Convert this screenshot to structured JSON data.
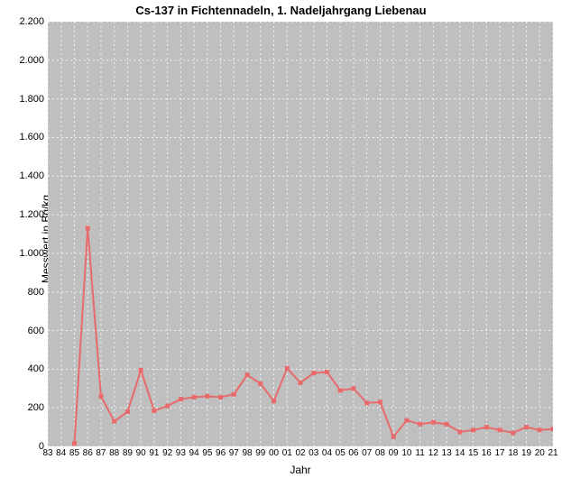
{
  "chart": {
    "type": "line",
    "title": "Cs-137 in Fichtennadeln, 1. Nadeljahrgang Liebenau",
    "title_fontsize": 13,
    "xlabel": "Jahr",
    "ylabel": "Messwert in Bq/kg",
    "label_fontsize": 12,
    "background_color": "#ffffff",
    "plot_background_color": "#bfbfbf",
    "grid_color": "#f2f2f2",
    "grid_dash": "2,3",
    "line_color": "#e86a6a",
    "marker_color": "#e86a6a",
    "marker_size": 5,
    "line_width": 2,
    "xlim": [
      1983,
      2021
    ],
    "ylim": [
      0,
      2200
    ],
    "ytick_step": 200,
    "yticks": [
      0,
      200,
      400,
      600,
      800,
      1000,
      1200,
      1400,
      1600,
      1800,
      2000,
      2200
    ],
    "ytick_labels": [
      "0",
      "200",
      "400",
      "600",
      "800",
      "1.000",
      "1.200",
      "1.400",
      "1.600",
      "1.800",
      "2.000",
      "2.200"
    ],
    "xticks": [
      1983,
      1984,
      1985,
      1986,
      1987,
      1988,
      1989,
      1990,
      1991,
      1992,
      1993,
      1994,
      1995,
      1996,
      1997,
      1998,
      1999,
      2000,
      2001,
      2002,
      2003,
      2004,
      2005,
      2006,
      2007,
      2008,
      2009,
      2010,
      2011,
      2012,
      2013,
      2014,
      2015,
      2016,
      2017,
      2018,
      2019,
      2020,
      2021
    ],
    "xtick_labels": [
      "83",
      "84",
      "85",
      "86",
      "87",
      "88",
      "89",
      "90",
      "91",
      "92",
      "93",
      "94",
      "95",
      "96",
      "97",
      "98",
      "99",
      "00",
      "01",
      "02",
      "03",
      "04",
      "05",
      "06",
      "07",
      "08",
      "09",
      "10",
      "11",
      "12",
      "13",
      "14",
      "15",
      "16",
      "17",
      "18",
      "19",
      "20",
      "21"
    ],
    "data": {
      "years": [
        1985,
        1986,
        1987,
        1988,
        1989,
        1990,
        1991,
        1992,
        1993,
        1994,
        1995,
        1996,
        1997,
        1998,
        1999,
        2000,
        2001,
        2002,
        2003,
        2004,
        2005,
        2006,
        2007,
        2008,
        2009,
        2010,
        2011,
        2012,
        2013,
        2014,
        2015,
        2016,
        2017,
        2018,
        2019,
        2020,
        2021
      ],
      "values": [
        15,
        1130,
        260,
        130,
        180,
        395,
        185,
        210,
        245,
        255,
        260,
        255,
        270,
        370,
        325,
        235,
        405,
        330,
        380,
        385,
        290,
        300,
        225,
        230,
        50,
        135,
        115,
        125,
        115,
        75,
        85,
        100,
        85,
        70,
        100,
        85,
        90
      ]
    }
  }
}
